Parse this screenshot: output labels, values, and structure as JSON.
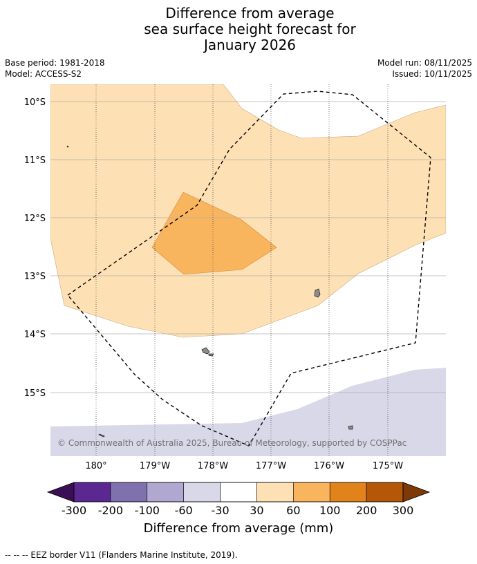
{
  "title": {
    "line1": "Difference from average",
    "line2": "sea surface height forecast for",
    "line3": "January 2026"
  },
  "meta": {
    "base_period": "Base period: 1981-2018",
    "model": "Model: ACCESS-S2",
    "model_run": "Model run: 08/11/2025",
    "issued": "Issued: 10/11/2025"
  },
  "map": {
    "lat_labels": [
      "10°S",
      "11°S",
      "12°S",
      "13°S",
      "14°S",
      "15°S"
    ],
    "lon_labels": [
      "180°",
      "179°W",
      "178°W",
      "177°W",
      "176°W",
      "175°W"
    ],
    "copyright": "© Commonwealth of Australia 2025, Bureau of Meteorology, supported by COSPPac",
    "anomaly_categories": [
      "30 to 60",
      "60 to 100",
      "-60 to -30"
    ]
  },
  "colorbar": {
    "ticks": [
      "-300",
      "-200",
      "-100",
      "-60",
      "-30",
      "30",
      "60",
      "100",
      "200",
      "300"
    ],
    "colors": [
      "#3b0f55",
      "#5a2890",
      "#7f70ae",
      "#b1a8d1",
      "#d8d8e9",
      "#ffffff",
      "#fde0b4",
      "#f9b45e",
      "#e2821a",
      "#b45707",
      "#7d3a06"
    ],
    "label": "Difference from average (mm)"
  },
  "footnote": "--  --  -- EEZ border V11 (Flanders Marine Institute, 2019)."
}
